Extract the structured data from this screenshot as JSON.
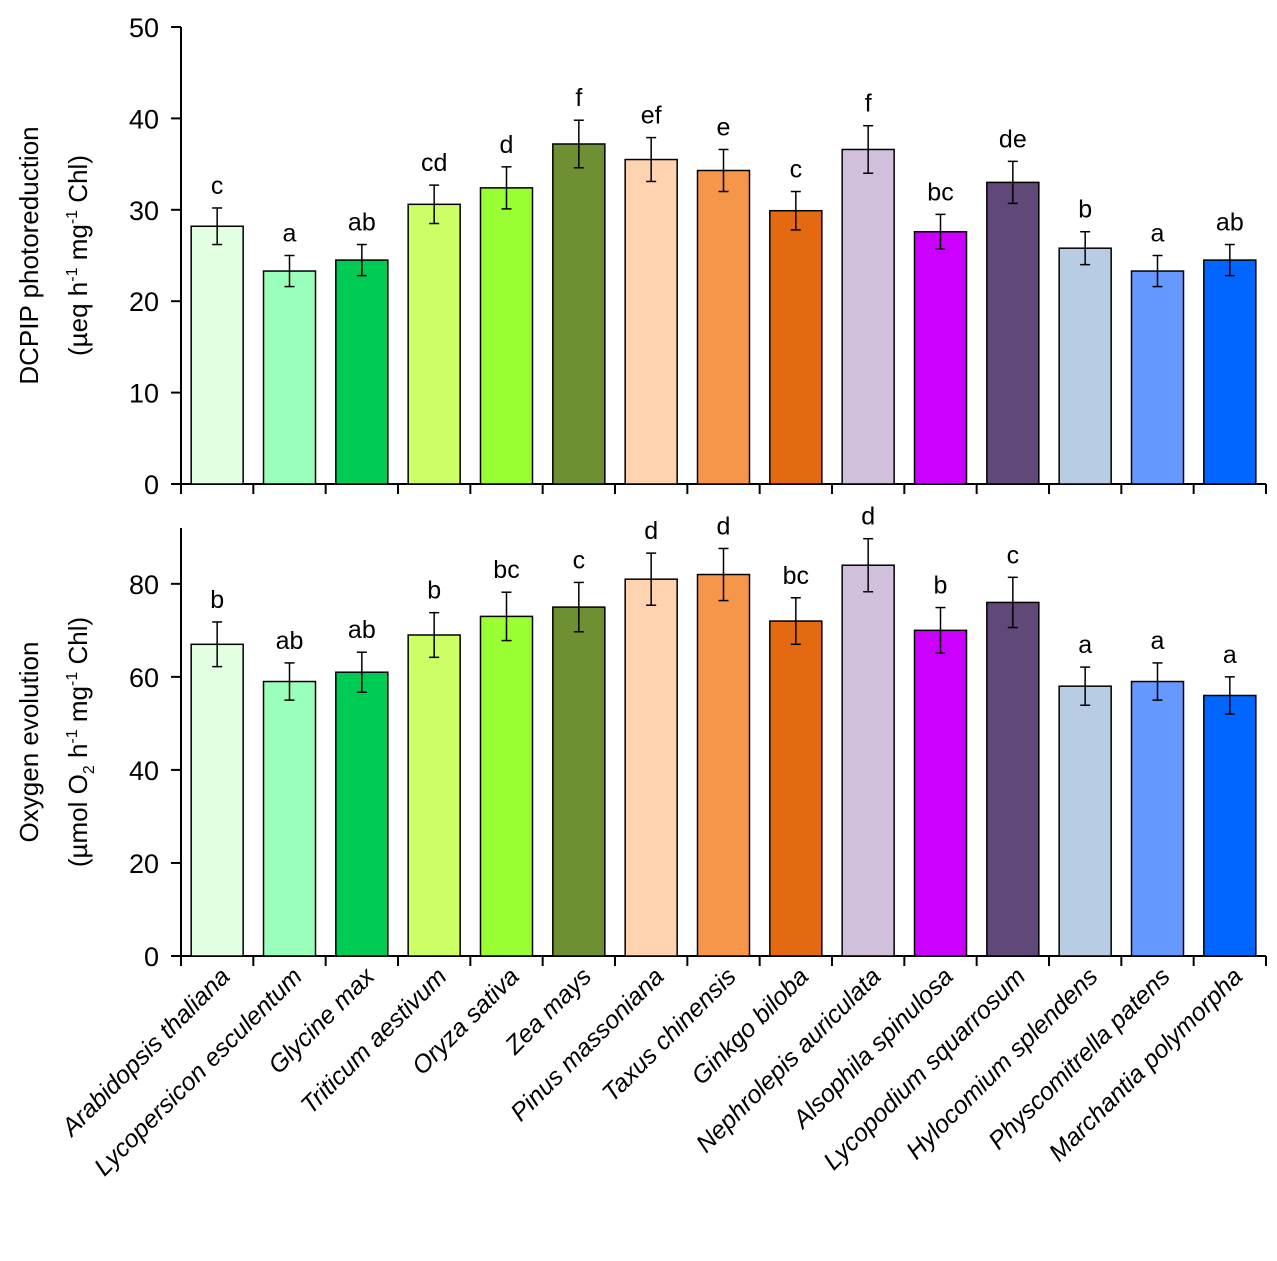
{
  "chart_data": {
    "type": "bar",
    "categories": [
      "Arabidopsis thaliana",
      "Lycopersicon esculentum",
      "Glycine max",
      "Triticum aestivum",
      "Oryza sativa",
      "Zea mays",
      "Pinus massoniana",
      "Taxus chinensis",
      "Ginkgo biloba",
      "Nephrolepis auriculata",
      "Alsophila spinulosa",
      "Lycopodium squarrosum",
      "Hylocomium splendens",
      "Physcomitrella patens",
      "Marchantia polymorpha"
    ],
    "colors": [
      "#e2ffe2",
      "#99ffbb",
      "#00cc55",
      "#ccff66",
      "#99ff33",
      "#6f8f33",
      "#ffd2b0",
      "#f5964a",
      "#e36a10",
      "#d0c0dc",
      "#cc00ff",
      "#604878",
      "#b8cce4",
      "#6699ff",
      "#0066ff"
    ],
    "panels": [
      {
        "id": "top",
        "ylabel_line1": "DCPIP photoreduction",
        "ylabel_line2_parts": [
          "(µeq h",
          "-1",
          " mg",
          "-1",
          " Chl)"
        ],
        "ylim": [
          0,
          50
        ],
        "yticks": [
          "0",
          "10",
          "20",
          "30",
          "40",
          "50"
        ],
        "values": [
          28.2,
          23.3,
          24.5,
          30.6,
          32.4,
          37.2,
          35.5,
          34.3,
          29.9,
          36.6,
          27.6,
          33.0,
          25.8,
          23.3,
          24.5
        ],
        "errors": [
          2.0,
          1.7,
          1.7,
          2.1,
          2.3,
          2.6,
          2.4,
          2.3,
          2.1,
          2.6,
          1.9,
          2.3,
          1.8,
          1.7,
          1.7
        ],
        "letters": [
          "c",
          "a",
          "ab",
          "cd",
          "d",
          "f",
          "ef",
          "e",
          "c",
          "f",
          "bc",
          "de",
          "b",
          "a",
          "ab"
        ]
      },
      {
        "id": "bottom",
        "ylabel_line1": "Oxygen evolution",
        "ylabel_line2_parts": [
          "(µmol O",
          "2",
          " h",
          "-1",
          " mg",
          "-1",
          " Chl)"
        ],
        "ylim": [
          0,
          92
        ],
        "yticks": [
          "0",
          "20",
          "40",
          "60",
          "80"
        ],
        "values": [
          67.0,
          59.0,
          61.0,
          69.0,
          73.0,
          75.0,
          81.0,
          82.0,
          72.0,
          84.0,
          70.0,
          76.0,
          58.0,
          59.0,
          56.0
        ],
        "errors": [
          4.8,
          4.0,
          4.3,
          4.8,
          5.2,
          5.3,
          5.6,
          5.6,
          5.0,
          5.7,
          4.9,
          5.4,
          4.1,
          4.0,
          4.0
        ],
        "letters": [
          "b",
          "ab",
          "ab",
          "b",
          "bc",
          "c",
          "d",
          "d",
          "bc",
          "d",
          "b",
          "c",
          "a",
          "a",
          "a"
        ]
      }
    ]
  }
}
